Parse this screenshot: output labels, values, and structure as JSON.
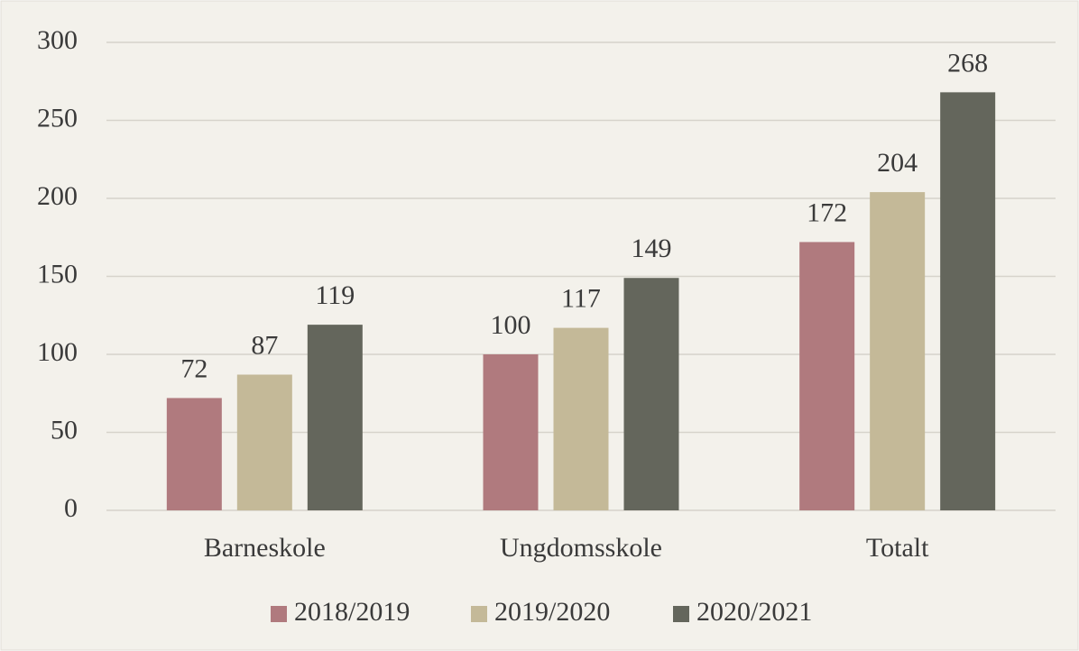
{
  "chart_data": {
    "type": "bar",
    "categories": [
      "Barneskole",
      "Ungdomsskole",
      "Totalt"
    ],
    "series": [
      {
        "name": "2018/2019",
        "color": "#b07a7e",
        "values": [
          72,
          100,
          172
        ]
      },
      {
        "name": "2019/2020",
        "color": "#c4b998",
        "values": [
          87,
          117,
          204
        ]
      },
      {
        "name": "2020/2021",
        "color": "#64665c",
        "values": [
          119,
          149,
          268
        ]
      }
    ],
    "ylim": [
      0,
      300
    ],
    "yticks": [
      0,
      50,
      100,
      150,
      200,
      250,
      300
    ],
    "grid": true,
    "legend": "bottom"
  }
}
